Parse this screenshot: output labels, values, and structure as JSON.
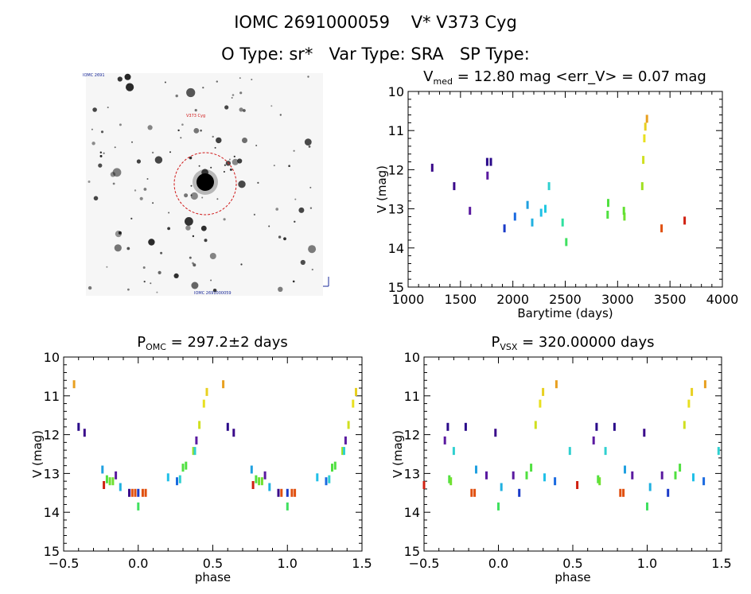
{
  "header": {
    "line1": "IOMC 2691000059    V* V373 Cyg",
    "line2": "O Type: sr*   Var Type: SRA   SP Type:"
  },
  "image_panel": {
    "top_left_label": "IOMC 2691",
    "center_label": "V373 Cyg",
    "bottom_label": "IOMC 2691000059"
  },
  "chart_data": [
    {
      "type": "scatter",
      "title": "V_med = 12.80 mag <err_V> = 0.07 mag",
      "title_parts": {
        "main": "V",
        "sub": "med",
        "rest": " = 12.80 mag <err_V> = 0.07 mag"
      },
      "xlabel": "Barytime (days)",
      "ylabel": "V (mag)",
      "xlim": [
        1000,
        4000
      ],
      "ylim": [
        15,
        10
      ],
      "y_inverted": true,
      "xticks": [
        "1000",
        "1500",
        "2000",
        "2500",
        "3000",
        "3500",
        "4000"
      ],
      "yticks": [
        "10",
        "11",
        "12",
        "13",
        "14",
        "15"
      ],
      "points": [
        {
          "x": 1230,
          "y": 11.95,
          "c": "#3a0a8a"
        },
        {
          "x": 1440,
          "y": 12.42,
          "c": "#3a0a8a"
        },
        {
          "x": 1590,
          "y": 13.05,
          "c": "#5a1aa0"
        },
        {
          "x": 1755,
          "y": 11.8,
          "c": "#2a0a8a"
        },
        {
          "x": 1758,
          "y": 12.15,
          "c": "#5a1aa0"
        },
        {
          "x": 1790,
          "y": 11.8,
          "c": "#2a0a8a"
        },
        {
          "x": 1920,
          "y": 13.5,
          "c": "#1a3ac8"
        },
        {
          "x": 2020,
          "y": 13.2,
          "c": "#1a6ae0"
        },
        {
          "x": 2140,
          "y": 12.9,
          "c": "#20a0e0"
        },
        {
          "x": 2185,
          "y": 13.35,
          "c": "#20b0e0"
        },
        {
          "x": 2270,
          "y": 13.1,
          "c": "#20c0e8"
        },
        {
          "x": 2310,
          "y": 13.0,
          "c": "#20c8e0"
        },
        {
          "x": 2345,
          "y": 12.42,
          "c": "#30d0d0"
        },
        {
          "x": 2475,
          "y": 13.35,
          "c": "#30e0a0"
        },
        {
          "x": 2510,
          "y": 13.85,
          "c": "#40e060"
        },
        {
          "x": 2910,
          "y": 12.85,
          "c": "#50e040"
        },
        {
          "x": 2905,
          "y": 13.15,
          "c": "#50e040"
        },
        {
          "x": 3065,
          "y": 13.2,
          "c": "#70e030"
        },
        {
          "x": 3060,
          "y": 13.05,
          "c": "#60e030"
        },
        {
          "x": 3235,
          "y": 12.42,
          "c": "#a0e020"
        },
        {
          "x": 3245,
          "y": 11.75,
          "c": "#d0e020"
        },
        {
          "x": 3255,
          "y": 11.2,
          "c": "#e8e020"
        },
        {
          "x": 3265,
          "y": 10.9,
          "c": "#e8d020"
        },
        {
          "x": 3280,
          "y": 10.7,
          "c": "#e8a020"
        },
        {
          "x": 3420,
          "y": 13.5,
          "c": "#e05010"
        },
        {
          "x": 3640,
          "y": 13.3,
          "c": "#d02010"
        }
      ]
    },
    {
      "type": "scatter",
      "title": "P_OMC = 297.2±2 days",
      "title_parts": {
        "main": "P",
        "sub": "OMC",
        "rest": " = 297.2±2 days"
      },
      "xlabel": "phase",
      "ylabel": "V (mag)",
      "xlim": [
        -0.5,
        1.5
      ],
      "ylim": [
        15,
        10
      ],
      "y_inverted": true,
      "xticks": [
        "−0.5",
        "0.0",
        "0.5",
        "1.0",
        "1.5"
      ],
      "yticks": [
        "10",
        "11",
        "12",
        "13",
        "14",
        "15"
      ],
      "points": [
        {
          "x": -0.43,
          "y": 10.7,
          "c": "#e8a020"
        },
        {
          "x": -0.4,
          "y": 11.8,
          "c": "#2a0a8a"
        },
        {
          "x": -0.36,
          "y": 11.95,
          "c": "#3a0a8a"
        },
        {
          "x": -0.24,
          "y": 12.9,
          "c": "#20a0e0"
        },
        {
          "x": -0.23,
          "y": 13.3,
          "c": "#d02010"
        },
        {
          "x": -0.21,
          "y": 13.15,
          "c": "#50e040"
        },
        {
          "x": -0.19,
          "y": 13.2,
          "c": "#70e030"
        },
        {
          "x": -0.17,
          "y": 13.2,
          "c": "#70e030"
        },
        {
          "x": -0.15,
          "y": 13.05,
          "c": "#5a1aa0"
        },
        {
          "x": -0.12,
          "y": 13.35,
          "c": "#20b0e0"
        },
        {
          "x": -0.06,
          "y": 13.5,
          "c": "#3a0a8a"
        },
        {
          "x": -0.04,
          "y": 13.5,
          "c": "#e05010"
        },
        {
          "x": -0.02,
          "y": 13.5,
          "c": "#e05010"
        },
        {
          "x": 0.0,
          "y": 13.85,
          "c": "#40e060"
        },
        {
          "x": 0.0,
          "y": 13.5,
          "c": "#1a3ac8"
        },
        {
          "x": 0.03,
          "y": 13.5,
          "c": "#e05010"
        },
        {
          "x": 0.05,
          "y": 13.5,
          "c": "#e05010"
        },
        {
          "x": 0.2,
          "y": 13.1,
          "c": "#20c0e8"
        },
        {
          "x": 0.26,
          "y": 13.2,
          "c": "#1a6ae0"
        },
        {
          "x": 0.28,
          "y": 13.15,
          "c": "#30d0d0"
        },
        {
          "x": 0.3,
          "y": 12.85,
          "c": "#50e040"
        },
        {
          "x": 0.32,
          "y": 12.8,
          "c": "#50e040"
        },
        {
          "x": 0.37,
          "y": 12.42,
          "c": "#a0e020"
        },
        {
          "x": 0.38,
          "y": 12.42,
          "c": "#30d0d0"
        },
        {
          "x": 0.39,
          "y": 12.15,
          "c": "#5a1aa0"
        },
        {
          "x": 0.41,
          "y": 11.75,
          "c": "#d0e020"
        },
        {
          "x": 0.44,
          "y": 11.2,
          "c": "#e8e020"
        },
        {
          "x": 0.46,
          "y": 10.9,
          "c": "#e8d020"
        },
        {
          "x": 0.57,
          "y": 10.7,
          "c": "#e8a020"
        },
        {
          "x": 0.6,
          "y": 11.8,
          "c": "#2a0a8a"
        },
        {
          "x": 0.64,
          "y": 11.95,
          "c": "#3a0a8a"
        },
        {
          "x": 0.76,
          "y": 12.9,
          "c": "#20a0e0"
        },
        {
          "x": 0.77,
          "y": 13.3,
          "c": "#d02010"
        },
        {
          "x": 0.79,
          "y": 13.15,
          "c": "#50e040"
        },
        {
          "x": 0.81,
          "y": 13.2,
          "c": "#70e030"
        },
        {
          "x": 0.83,
          "y": 13.2,
          "c": "#70e030"
        },
        {
          "x": 0.85,
          "y": 13.05,
          "c": "#5a1aa0"
        },
        {
          "x": 0.88,
          "y": 13.35,
          "c": "#20b0e0"
        },
        {
          "x": 0.94,
          "y": 13.5,
          "c": "#3a0a8a"
        },
        {
          "x": 0.96,
          "y": 13.5,
          "c": "#e05010"
        },
        {
          "x": 1.0,
          "y": 13.85,
          "c": "#40e060"
        },
        {
          "x": 1.0,
          "y": 13.5,
          "c": "#1a3ac8"
        },
        {
          "x": 1.03,
          "y": 13.5,
          "c": "#e05010"
        },
        {
          "x": 1.05,
          "y": 13.5,
          "c": "#e05010"
        },
        {
          "x": 1.2,
          "y": 13.1,
          "c": "#20c0e8"
        },
        {
          "x": 1.26,
          "y": 13.2,
          "c": "#1a6ae0"
        },
        {
          "x": 1.28,
          "y": 13.15,
          "c": "#30d0d0"
        },
        {
          "x": 1.3,
          "y": 12.85,
          "c": "#50e040"
        },
        {
          "x": 1.32,
          "y": 12.8,
          "c": "#50e040"
        },
        {
          "x": 1.37,
          "y": 12.42,
          "c": "#a0e020"
        },
        {
          "x": 1.38,
          "y": 12.42,
          "c": "#30d0d0"
        },
        {
          "x": 1.39,
          "y": 12.15,
          "c": "#5a1aa0"
        },
        {
          "x": 1.41,
          "y": 11.75,
          "c": "#d0e020"
        },
        {
          "x": 1.44,
          "y": 11.2,
          "c": "#e8e020"
        },
        {
          "x": 1.46,
          "y": 10.9,
          "c": "#e8d020"
        }
      ]
    },
    {
      "type": "scatter",
      "title": "P_VSX = 320.00000 days",
      "title_parts": {
        "main": "P",
        "sub": "VSX",
        "rest": " = 320.00000 days"
      },
      "xlabel": "phase",
      "ylabel": "V (mag)",
      "xlim": [
        -0.5,
        1.5
      ],
      "ylim": [
        15,
        10
      ],
      "y_inverted": true,
      "xticks": [
        "−0.5",
        "0.0",
        "0.5",
        "1.0",
        "1.5"
      ],
      "yticks": [
        "10",
        "11",
        "12",
        "13",
        "14",
        "15"
      ],
      "points": [
        {
          "x": -0.5,
          "y": 13.3,
          "c": "#d02010"
        },
        {
          "x": -0.36,
          "y": 12.15,
          "c": "#5a1aa0"
        },
        {
          "x": -0.34,
          "y": 11.8,
          "c": "#2a0a8a"
        },
        {
          "x": -0.33,
          "y": 13.15,
          "c": "#50e040"
        },
        {
          "x": -0.32,
          "y": 13.2,
          "c": "#70e030"
        },
        {
          "x": -0.3,
          "y": 12.42,
          "c": "#30d0d0"
        },
        {
          "x": -0.22,
          "y": 11.8,
          "c": "#2a0a8a"
        },
        {
          "x": -0.18,
          "y": 13.5,
          "c": "#e05010"
        },
        {
          "x": -0.16,
          "y": 13.5,
          "c": "#e05010"
        },
        {
          "x": -0.15,
          "y": 12.9,
          "c": "#20a0e0"
        },
        {
          "x": -0.08,
          "y": 13.05,
          "c": "#5a1aa0"
        },
        {
          "x": -0.02,
          "y": 11.95,
          "c": "#3a0a8a"
        },
        {
          "x": 0.0,
          "y": 13.85,
          "c": "#40e060"
        },
        {
          "x": 0.02,
          "y": 13.35,
          "c": "#20b0e0"
        },
        {
          "x": 0.1,
          "y": 13.05,
          "c": "#5a1aa0"
        },
        {
          "x": 0.14,
          "y": 13.5,
          "c": "#1a3ac8"
        },
        {
          "x": 0.19,
          "y": 13.05,
          "c": "#50e040"
        },
        {
          "x": 0.22,
          "y": 12.85,
          "c": "#50e040"
        },
        {
          "x": 0.25,
          "y": 11.75,
          "c": "#d0e020"
        },
        {
          "x": 0.28,
          "y": 11.2,
          "c": "#e8e020"
        },
        {
          "x": 0.3,
          "y": 10.9,
          "c": "#e8d020"
        },
        {
          "x": 0.31,
          "y": 13.1,
          "c": "#20c0e8"
        },
        {
          "x": 0.38,
          "y": 13.2,
          "c": "#1a6ae0"
        },
        {
          "x": 0.39,
          "y": 10.7,
          "c": "#e8a020"
        },
        {
          "x": 0.48,
          "y": 12.42,
          "c": "#30d0d0"
        },
        {
          "x": 0.53,
          "y": 13.3,
          "c": "#d02010"
        },
        {
          "x": 0.64,
          "y": 12.15,
          "c": "#5a1aa0"
        },
        {
          "x": 0.66,
          "y": 11.8,
          "c": "#2a0a8a"
        },
        {
          "x": 0.67,
          "y": 13.15,
          "c": "#50e040"
        },
        {
          "x": 0.68,
          "y": 13.2,
          "c": "#70e030"
        },
        {
          "x": 0.72,
          "y": 12.42,
          "c": "#30d0d0"
        },
        {
          "x": 0.78,
          "y": 11.8,
          "c": "#2a0a8a"
        },
        {
          "x": 0.82,
          "y": 13.5,
          "c": "#e05010"
        },
        {
          "x": 0.84,
          "y": 13.5,
          "c": "#e05010"
        },
        {
          "x": 0.85,
          "y": 12.9,
          "c": "#20a0e0"
        },
        {
          "x": 0.9,
          "y": 13.05,
          "c": "#5a1aa0"
        },
        {
          "x": 0.98,
          "y": 11.95,
          "c": "#3a0a8a"
        },
        {
          "x": 1.0,
          "y": 13.85,
          "c": "#40e060"
        },
        {
          "x": 1.02,
          "y": 13.35,
          "c": "#20b0e0"
        },
        {
          "x": 1.1,
          "y": 13.05,
          "c": "#5a1aa0"
        },
        {
          "x": 1.14,
          "y": 13.5,
          "c": "#1a3ac8"
        },
        {
          "x": 1.19,
          "y": 13.05,
          "c": "#50e040"
        },
        {
          "x": 1.22,
          "y": 12.85,
          "c": "#50e040"
        },
        {
          "x": 1.25,
          "y": 11.75,
          "c": "#d0e020"
        },
        {
          "x": 1.28,
          "y": 11.2,
          "c": "#e8e020"
        },
        {
          "x": 1.3,
          "y": 10.9,
          "c": "#e8d020"
        },
        {
          "x": 1.31,
          "y": 13.1,
          "c": "#20c0e8"
        },
        {
          "x": 1.38,
          "y": 13.2,
          "c": "#1a6ae0"
        },
        {
          "x": 1.39,
          "y": 10.7,
          "c": "#e8a020"
        },
        {
          "x": 1.48,
          "y": 12.42,
          "c": "#30d0d0"
        }
      ]
    }
  ]
}
